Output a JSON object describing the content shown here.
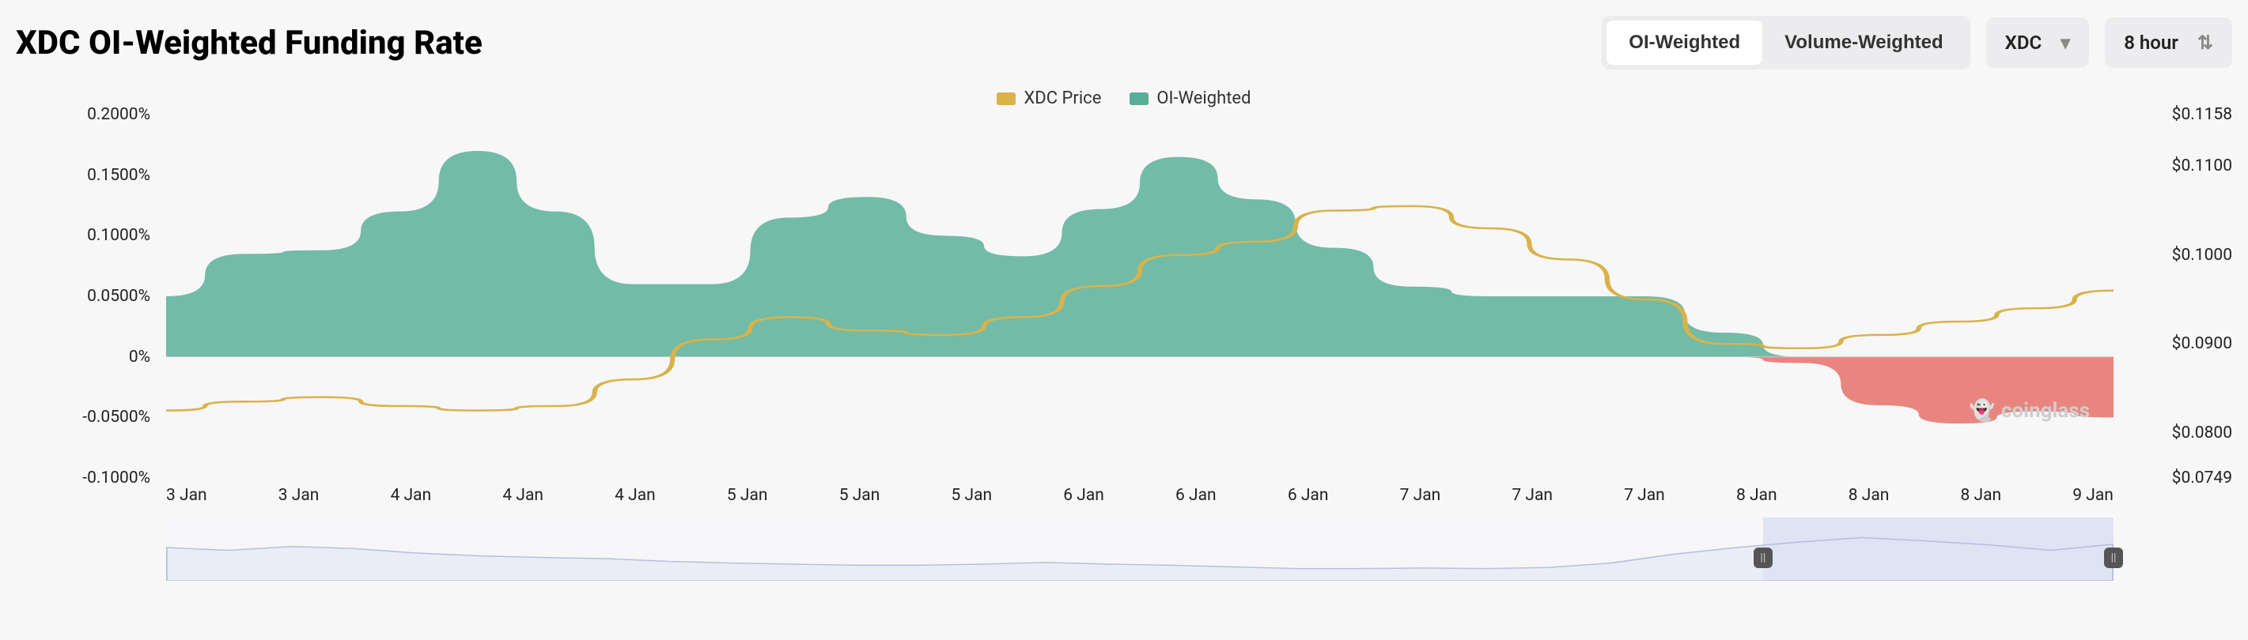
{
  "title": "XDC OI-Weighted Funding Rate",
  "toggles": {
    "oi": "OI-Weighted",
    "volume": "Volume-Weighted",
    "active": "oi"
  },
  "asset_dropdown": {
    "value": "XDC"
  },
  "interval_dropdown": {
    "value": "8 hour"
  },
  "legend": {
    "price": {
      "label": "XDC Price",
      "color": "#d9b24a"
    },
    "oi": {
      "label": "OI-Weighted",
      "color": "#58ae97"
    }
  },
  "chart": {
    "type": "area+line",
    "background_color": "#f7f7f8",
    "grid_color": "#f0f0f0",
    "left_axis": {
      "label": "",
      "ticks": [
        "0.2000%",
        "0.1500%",
        "0.1000%",
        "0.0500%",
        "0%",
        "-0.0500%",
        "-0.1000%"
      ],
      "min": -0.1,
      "max": 0.2
    },
    "right_axis": {
      "label": "",
      "ticks": [
        {
          "v": 0.1158,
          "label": "$0.1158"
        },
        {
          "v": 0.11,
          "label": "$0.1100"
        },
        {
          "v": 0.1,
          "label": "$0.1000"
        },
        {
          "v": 0.09,
          "label": "$0.0900"
        },
        {
          "v": 0.08,
          "label": "$0.0800"
        },
        {
          "v": 0.0749,
          "label": "$0.0749"
        }
      ],
      "min": 0.0749,
      "max": 0.1158
    },
    "x_labels": [
      "3 Jan",
      "3 Jan",
      "4 Jan",
      "4 Jan",
      "4 Jan",
      "5 Jan",
      "5 Jan",
      "5 Jan",
      "6 Jan",
      "6 Jan",
      "6 Jan",
      "7 Jan",
      "7 Jan",
      "7 Jan",
      "8 Jan",
      "8 Jan",
      "8 Jan",
      "9 Jan"
    ],
    "series_oi": {
      "color_pos": "#66b5a0",
      "color_neg": "#e77b74",
      "opacity": 0.92,
      "values": [
        0.05,
        0.085,
        0.088,
        0.12,
        0.17,
        0.12,
        0.06,
        0.06,
        0.115,
        0.132,
        0.1,
        0.083,
        0.122,
        0.165,
        0.13,
        0.09,
        0.058,
        0.05,
        0.05,
        0.05,
        0.02,
        -0.005,
        -0.04,
        -0.055,
        -0.045,
        -0.05
      ]
    },
    "series_price": {
      "color": "#d9b24a",
      "width": 2.5,
      "values": [
        0.0825,
        0.0835,
        0.084,
        0.083,
        0.0825,
        0.083,
        0.086,
        0.0905,
        0.093,
        0.0915,
        0.091,
        0.093,
        0.0965,
        0.1,
        0.1015,
        0.105,
        0.1055,
        0.103,
        0.0995,
        0.095,
        0.09,
        0.0895,
        0.091,
        0.0925,
        0.094,
        0.096
      ]
    },
    "brush": {
      "bg_color": "#f6f6f8",
      "sel_color": "#dfe3f3",
      "line_color": "#b7bfdd",
      "sel_start": 0.82,
      "sel_end": 1.0,
      "values": [
        0.6,
        0.55,
        0.62,
        0.58,
        0.5,
        0.45,
        0.42,
        0.4,
        0.35,
        0.32,
        0.3,
        0.28,
        0.28,
        0.3,
        0.33,
        0.3,
        0.28,
        0.25,
        0.22,
        0.22,
        0.23,
        0.22,
        0.24,
        0.32,
        0.48,
        0.6,
        0.7,
        0.78,
        0.72,
        0.65,
        0.55,
        0.66
      ]
    }
  },
  "watermark": "coinglass"
}
